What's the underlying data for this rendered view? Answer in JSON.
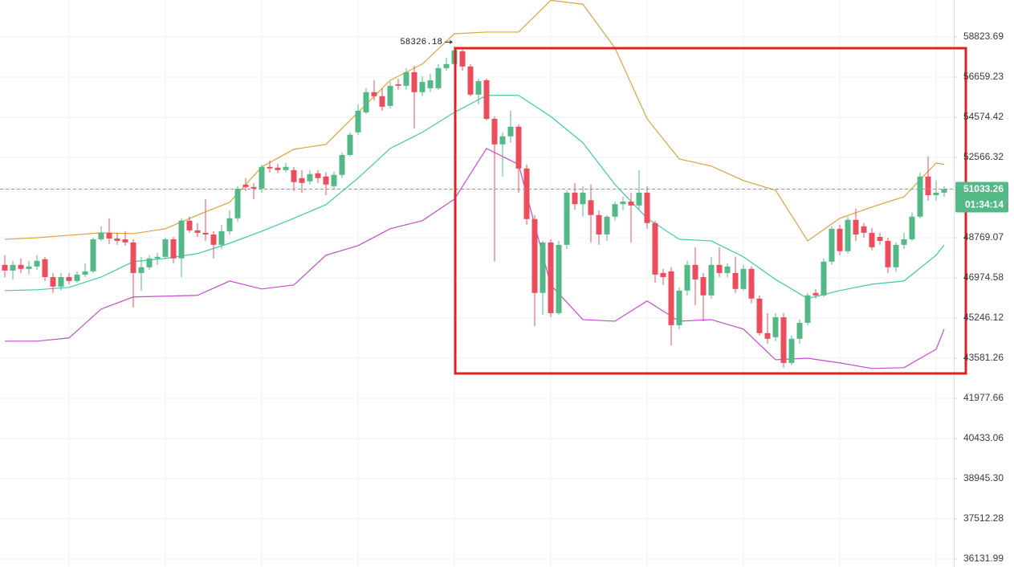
{
  "chart_data": {
    "type": "candlestick",
    "log_scale": true,
    "grid": true,
    "up_color": "#53b987",
    "down_color": "#eb4d5c",
    "ylim": [
      35863,
      60888
    ],
    "yticks": [
      58823.69,
      56659.23,
      54574.42,
      52566.32,
      48769.07,
      46974.58,
      45246.12,
      43581.26,
      41977.66,
      40433.06,
      {
        "value": 38945.3,
        "label": "38945.30"
      },
      37512.28,
      36131.99
    ],
    "open": [
      47549,
      47298,
      47549,
      47370,
      47478,
      47801,
      47011,
      46595,
      47011,
      46838,
      47119,
      47262,
      48698,
      48993,
      48734,
      48698,
      48555,
      47190,
      47442,
      47836,
      47908,
      48698,
      47836,
      49552,
      49105,
      48993,
      48918,
      48447,
      49067,
      49664,
      51251,
      51135,
      51058,
      52103,
      52064,
      51948,
      51948,
      51561,
      51406,
      51793,
      51638,
      51174,
      51716,
      52687,
      53812,
      54824,
      55867,
      55658,
      55158,
      56283,
      56200,
      56919,
      55867,
      56075,
      56075,
      57135,
      57352,
      58045,
      57222,
      55741,
      56492,
      54496,
      53210,
      53611,
      54094,
      52026,
      49627,
      46319,
      48555,
      45454,
      48447,
      50864,
      50321,
      50508,
      49813,
      48918,
      49739,
      50321,
      50445,
      50259,
      50864,
      49440,
      47190,
      47262,
      44946,
      46422,
      47549,
      47011,
      46215,
      47549,
      47190,
      47190,
      46492,
      47370,
      46076,
      44613,
      44447,
      45280,
      43390,
      44380,
      45046,
      46319,
      46215,
      47693,
      49179,
      48160,
      49589,
      49291,
      48993,
      48806,
      48626,
      47442,
      48447,
      48698,
      49739,
      51638,
      50748,
      50864
    ],
    "high": [
      47980,
      47729,
      47836,
      47729,
      47980,
      47908,
      47190,
      47190,
      47190,
      47262,
      47621,
      48769,
      49291,
      49664,
      48993,
      49067,
      48698,
      47908,
      47980,
      48088,
      48769,
      48806,
      49664,
      49739,
      49440,
      50559,
      49067,
      49366,
      50036,
      51174,
      51561,
      51329,
      52219,
      52413,
      52258,
      52297,
      52103,
      51948,
      51948,
      51948,
      51832,
      51870,
      52807,
      53812,
      55241,
      56075,
      56492,
      56075,
      56409,
      56575,
      57135,
      57265,
      56702,
      56832,
      57352,
      57698,
      58326.18,
      58131,
      57352,
      56575,
      56575,
      54616,
      53812,
      54908,
      54214,
      52219,
      49813,
      48626,
      48698,
      48626,
      50980,
      51329,
      51174,
      51251,
      50036,
      49813,
      50445,
      50671,
      50864,
      51948,
      51174,
      49552,
      47370,
      47442,
      46561,
      47729,
      48339,
      47190,
      47908,
      48339,
      47621,
      47908,
      47549,
      47478,
      46215,
      45454,
      45454,
      45454,
      44513,
      45180,
      46319,
      46492,
      47836,
      49291,
      49366,
      49739,
      50111,
      49440,
      49216,
      48993,
      48769,
      48555,
      48993,
      49925,
      51832,
      52606,
      51445,
      51174
    ],
    "low": [
      47011,
      46907,
      47190,
      47119,
      47334,
      46838,
      46319,
      46422,
      46699,
      46769,
      47011,
      47190,
      48626,
      48483,
      48447,
      48411,
      45696,
      46422,
      47334,
      47549,
      47836,
      47621,
      47011,
      48993,
      48806,
      48626,
      47836,
      48267,
      48918,
      49515,
      50942,
      50557,
      50864,
      51832,
      51793,
      51832,
      50942,
      50864,
      51251,
      51329,
      50748,
      51019,
      51561,
      52606,
      53692,
      54741,
      55450,
      54908,
      55033,
      55992,
      55992,
      54013,
      55658,
      55867,
      55992,
      57005,
      57265,
      57005,
      55658,
      55241,
      54415,
      47693,
      51638,
      53290,
      50864,
      49366,
      44913,
      45384,
      45281,
      45384,
      48267,
      50060,
      49739,
      48555,
      48447,
      48626,
      49552,
      50036,
      48555,
      50036,
      49179,
      46769,
      46665,
      44114,
      44780,
      46215,
      45800,
      45113,
      46076,
      47011,
      47011,
      46319,
      46422,
      45869,
      44513,
      44180,
      44280,
      43198,
      43294,
      44180,
      44946,
      46076,
      46146,
      47549,
      47980,
      48052,
      48626,
      48769,
      48196,
      48447,
      47190,
      47262,
      48267,
      48626,
      49664,
      50483,
      50483,
      50671
    ],
    "close": [
      47298,
      47549,
      47370,
      47478,
      47729,
      47011,
      46595,
      47011,
      46838,
      47119,
      47262,
      48698,
      48993,
      48734,
      48626,
      48555,
      47190,
      47442,
      47836,
      47908,
      48698,
      47836,
      49552,
      49105,
      48993,
      48918,
      48447,
      49067,
      49664,
      51058,
      51135,
      51058,
      52103,
      52026,
      51948,
      52103,
      51367,
      51329,
      51754,
      51561,
      51251,
      51716,
      52687,
      53692,
      54908,
      55867,
      55658,
      55116,
      56200,
      56200,
      56919,
      55867,
      56409,
      56492,
      57135,
      57352,
      58088,
      57222,
      55741,
      56450,
      54496,
      53210,
      53611,
      54094,
      52026,
      49627,
      46319,
      48555,
      45454,
      48447,
      50864,
      50321,
      50864,
      49813,
      48918,
      49739,
      50321,
      50445,
      50259,
      50864,
      49440,
      47119,
      47011,
      44946,
      46422,
      47549,
      46907,
      46215,
      47549,
      47190,
      47478,
      46492,
      47370,
      46076,
      44613,
      44380,
      45280,
      43390,
      44380,
      45046,
      46215,
      46215,
      47693,
      49179,
      48160,
      49589,
      48918,
      48993,
      48339,
      48626,
      47442,
      48447,
      48698,
      49739,
      51638,
      50748,
      50864,
      51033.26
    ],
    "overlay_x": [
      0,
      4,
      8,
      12,
      16,
      20,
      24,
      28,
      32,
      36,
      40,
      44,
      48,
      52,
      56,
      60,
      64,
      68,
      72,
      76,
      80,
      84,
      88,
      92,
      96,
      100,
      104,
      108,
      112,
      116,
      117
    ],
    "series": [
      {
        "color": "#d9a441",
        "values": [
          48698,
          48769,
          48881,
          48993,
          48956,
          49179,
          49813,
          50410,
          52103,
          52968,
          53210,
          54824,
          56492,
          57352,
          59002,
          59091,
          59091,
          60871,
          60649,
          58218,
          54494,
          52490,
          52142,
          51445,
          50980,
          48626,
          49664,
          50187,
          50671,
          52297,
          52219
        ]
      },
      {
        "color": "#3ec9ae",
        "values": [
          46422,
          46457,
          46561,
          47011,
          47693,
          47836,
          48052,
          48519,
          49067,
          49664,
          50298,
          51561,
          53008,
          53812,
          54824,
          55700,
          55700,
          54616,
          53290,
          51251,
          49664,
          48698,
          48626,
          47908,
          46907,
          46076,
          46422,
          46699,
          46838,
          47980,
          48447
        ]
      },
      {
        "color": "#c54bcf",
        "values": [
          44280,
          44280,
          44414,
          45627,
          46146,
          46180,
          46215,
          46838,
          46492,
          46665,
          47980,
          48411,
          49179,
          49552,
          50559,
          53008,
          52219,
          46665,
          45180,
          45113,
          45973,
          45113,
          45180,
          44780,
          43519,
          43581,
          43390,
          43166,
          43198,
          43947,
          44780
        ]
      }
    ],
    "countdown": "01:34:14"
  }
}
